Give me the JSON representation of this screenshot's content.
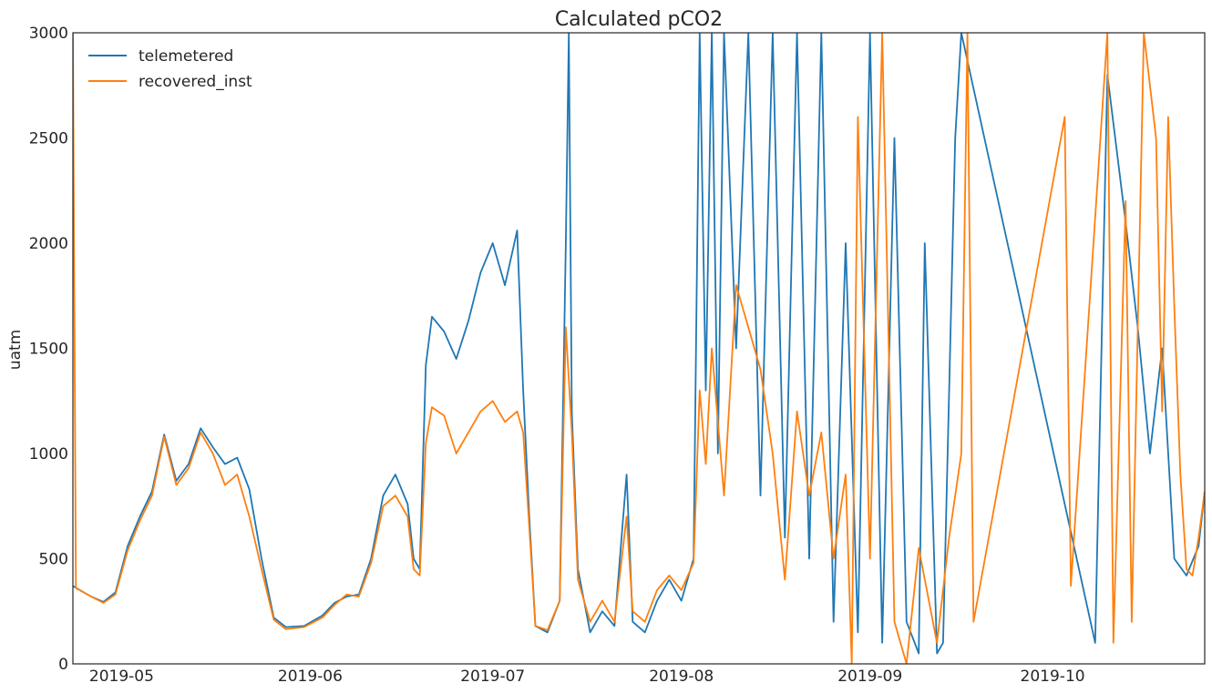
{
  "chart_data": {
    "type": "line",
    "title": "Calculated pCO2",
    "xlabel": "",
    "ylabel": "uatm",
    "xlim": [
      "2019-04-23",
      "2019-10-26"
    ],
    "ylim": [
      0,
      3000
    ],
    "x_ticks": [
      "2019-05",
      "2019-06",
      "2019-07",
      "2019-08",
      "2019-09",
      "2019-10"
    ],
    "y_ticks": [
      0,
      500,
      1000,
      1500,
      2000,
      2500,
      3000
    ],
    "grid": false,
    "legend_position": "upper-left",
    "series": [
      {
        "name": "telemetered",
        "color": "#1f77b4",
        "points": [
          [
            "2019-04-23",
            370
          ],
          [
            "2019-04-26",
            320
          ],
          [
            "2019-04-28",
            295
          ],
          [
            "2019-04-30",
            340
          ],
          [
            "2019-05-02",
            560
          ],
          [
            "2019-05-04",
            700
          ],
          [
            "2019-05-06",
            820
          ],
          [
            "2019-05-08",
            1090
          ],
          [
            "2019-05-10",
            870
          ],
          [
            "2019-05-12",
            950
          ],
          [
            "2019-05-14",
            1120
          ],
          [
            "2019-05-16",
            1030
          ],
          [
            "2019-05-18",
            950
          ],
          [
            "2019-05-20",
            980
          ],
          [
            "2019-05-22",
            830
          ],
          [
            "2019-05-24",
            500
          ],
          [
            "2019-05-26",
            220
          ],
          [
            "2019-05-28",
            175
          ],
          [
            "2019-05-31",
            180
          ],
          [
            "2019-06-03",
            230
          ],
          [
            "2019-06-05",
            290
          ],
          [
            "2019-06-07",
            320
          ],
          [
            "2019-06-09",
            330
          ],
          [
            "2019-06-11",
            500
          ],
          [
            "2019-06-13",
            800
          ],
          [
            "2019-06-15",
            900
          ],
          [
            "2019-06-17",
            760
          ],
          [
            "2019-06-18",
            500
          ],
          [
            "2019-06-19",
            450
          ],
          [
            "2019-06-20",
            1420
          ],
          [
            "2019-06-21",
            1650
          ],
          [
            "2019-06-23",
            1580
          ],
          [
            "2019-06-25",
            1450
          ],
          [
            "2019-06-27",
            1630
          ],
          [
            "2019-06-29",
            1860
          ],
          [
            "2019-07-01",
            2000
          ],
          [
            "2019-07-03",
            1800
          ],
          [
            "2019-07-05",
            2060
          ],
          [
            "2019-07-06",
            1300
          ],
          [
            "2019-07-07",
            700
          ],
          [
            "2019-07-08",
            180
          ],
          [
            "2019-07-10",
            150
          ],
          [
            "2019-07-12",
            300
          ],
          [
            "2019-07-13",
            2000
          ],
          [
            "2019-07-13.5",
            3000
          ],
          [
            "2019-07-14",
            1200
          ],
          [
            "2019-07-15",
            450
          ],
          [
            "2019-07-17",
            150
          ],
          [
            "2019-07-19",
            250
          ],
          [
            "2019-07-21",
            180
          ],
          [
            "2019-07-23",
            900
          ],
          [
            "2019-07-24",
            200
          ],
          [
            "2019-07-26",
            150
          ],
          [
            "2019-07-28",
            300
          ],
          [
            "2019-07-30",
            400
          ],
          [
            "2019-08-01",
            300
          ],
          [
            "2019-08-03",
            500
          ],
          [
            "2019-08-04",
            3000
          ],
          [
            "2019-08-05",
            1300
          ],
          [
            "2019-08-06",
            3000
          ],
          [
            "2019-08-07",
            1000
          ],
          [
            "2019-08-08",
            3000
          ],
          [
            "2019-08-10",
            1500
          ],
          [
            "2019-08-12",
            3000
          ],
          [
            "2019-08-14",
            800
          ],
          [
            "2019-08-16",
            3000
          ],
          [
            "2019-08-18",
            600
          ],
          [
            "2019-08-20",
            3000
          ],
          [
            "2019-08-22",
            500
          ],
          [
            "2019-08-24",
            3000
          ],
          [
            "2019-08-26",
            200
          ],
          [
            "2019-08-28",
            2000
          ],
          [
            "2019-08-30",
            150
          ],
          [
            "2019-09-01",
            3000
          ],
          [
            "2019-09-03",
            100
          ],
          [
            "2019-09-05",
            2500
          ],
          [
            "2019-09-07",
            200
          ],
          [
            "2019-09-09",
            50
          ],
          [
            "2019-09-10",
            2000
          ],
          [
            "2019-09-12",
            50
          ],
          [
            "2019-09-13",
            100
          ],
          [
            "2019-09-15",
            2500
          ],
          [
            "2019-09-16",
            3000
          ],
          [
            "2019-10-08",
            100
          ],
          [
            "2019-10-10",
            2800
          ],
          [
            "2019-10-13",
            2100
          ],
          [
            "2019-10-15",
            1600
          ],
          [
            "2019-10-17",
            1000
          ],
          [
            "2019-10-19",
            1500
          ],
          [
            "2019-10-21",
            500
          ],
          [
            "2019-10-23",
            420
          ],
          [
            "2019-10-25",
            560
          ],
          [
            "2019-10-26",
            820
          ]
        ]
      },
      {
        "name": "recovered_inst",
        "color": "#ff7f0e",
        "points": [
          [
            "2019-04-23",
            3000
          ],
          [
            "2019-04-23.5",
            360
          ],
          [
            "2019-04-26",
            320
          ],
          [
            "2019-04-28",
            290
          ],
          [
            "2019-04-30",
            330
          ],
          [
            "2019-05-02",
            540
          ],
          [
            "2019-05-04",
            680
          ],
          [
            "2019-05-06",
            800
          ],
          [
            "2019-05-08",
            1080
          ],
          [
            "2019-05-10",
            850
          ],
          [
            "2019-05-12",
            930
          ],
          [
            "2019-05-14",
            1100
          ],
          [
            "2019-05-16",
            1000
          ],
          [
            "2019-05-18",
            850
          ],
          [
            "2019-05-20",
            900
          ],
          [
            "2019-05-22",
            700
          ],
          [
            "2019-05-24",
            450
          ],
          [
            "2019-05-26",
            210
          ],
          [
            "2019-05-28",
            165
          ],
          [
            "2019-05-31",
            175
          ],
          [
            "2019-06-03",
            220
          ],
          [
            "2019-06-05",
            280
          ],
          [
            "2019-06-07",
            330
          ],
          [
            "2019-06-09",
            320
          ],
          [
            "2019-06-11",
            480
          ],
          [
            "2019-06-13",
            750
          ],
          [
            "2019-06-15",
            800
          ],
          [
            "2019-06-17",
            700
          ],
          [
            "2019-06-18",
            450
          ],
          [
            "2019-06-19",
            420
          ],
          [
            "2019-06-20",
            1050
          ],
          [
            "2019-06-21",
            1220
          ],
          [
            "2019-06-23",
            1180
          ],
          [
            "2019-06-25",
            1000
          ],
          [
            "2019-06-27",
            1100
          ],
          [
            "2019-06-29",
            1200
          ],
          [
            "2019-07-01",
            1250
          ],
          [
            "2019-07-03",
            1150
          ],
          [
            "2019-07-05",
            1200
          ],
          [
            "2019-07-06",
            1100
          ],
          [
            "2019-07-07",
            650
          ],
          [
            "2019-07-08",
            180
          ],
          [
            "2019-07-10",
            160
          ],
          [
            "2019-07-12",
            300
          ],
          [
            "2019-07-13",
            1600
          ],
          [
            "2019-07-14",
            1100
          ],
          [
            "2019-07-15",
            400
          ],
          [
            "2019-07-17",
            200
          ],
          [
            "2019-07-19",
            300
          ],
          [
            "2019-07-21",
            200
          ],
          [
            "2019-07-23",
            700
          ],
          [
            "2019-07-24",
            250
          ],
          [
            "2019-07-26",
            200
          ],
          [
            "2019-07-28",
            350
          ],
          [
            "2019-07-30",
            420
          ],
          [
            "2019-08-01",
            350
          ],
          [
            "2019-08-03",
            480
          ],
          [
            "2019-08-04",
            1300
          ],
          [
            "2019-08-05",
            950
          ],
          [
            "2019-08-06",
            1500
          ],
          [
            "2019-08-08",
            800
          ],
          [
            "2019-08-10",
            1800
          ],
          [
            "2019-08-12",
            1600
          ],
          [
            "2019-08-14",
            1400
          ],
          [
            "2019-08-16",
            1000
          ],
          [
            "2019-08-18",
            400
          ],
          [
            "2019-08-20",
            1200
          ],
          [
            "2019-08-22",
            800
          ],
          [
            "2019-08-24",
            1100
          ],
          [
            "2019-08-26",
            500
          ],
          [
            "2019-08-28",
            900
          ],
          [
            "2019-08-29",
            0
          ],
          [
            "2019-08-30",
            2600
          ],
          [
            "2019-09-01",
            500
          ],
          [
            "2019-09-03",
            3000
          ],
          [
            "2019-09-05",
            200
          ],
          [
            "2019-09-07",
            0
          ],
          [
            "2019-09-09",
            550
          ],
          [
            "2019-09-12",
            100
          ],
          [
            "2019-09-14",
            600
          ],
          [
            "2019-09-16",
            1000
          ],
          [
            "2019-09-17",
            3000
          ],
          [
            "2019-09-18",
            200
          ],
          [
            "2019-10-03",
            2600
          ],
          [
            "2019-10-04",
            370
          ],
          [
            "2019-10-10",
            3000
          ],
          [
            "2019-10-11",
            100
          ],
          [
            "2019-10-13",
            2200
          ],
          [
            "2019-10-14",
            200
          ],
          [
            "2019-10-16",
            3000
          ],
          [
            "2019-10-18",
            2500
          ],
          [
            "2019-10-19",
            1200
          ],
          [
            "2019-10-20",
            2600
          ],
          [
            "2019-10-21",
            1700
          ],
          [
            "2019-10-22",
            900
          ],
          [
            "2019-10-23",
            450
          ],
          [
            "2019-10-24",
            420
          ],
          [
            "2019-10-25",
            600
          ],
          [
            "2019-10-26",
            820
          ]
        ]
      }
    ]
  }
}
